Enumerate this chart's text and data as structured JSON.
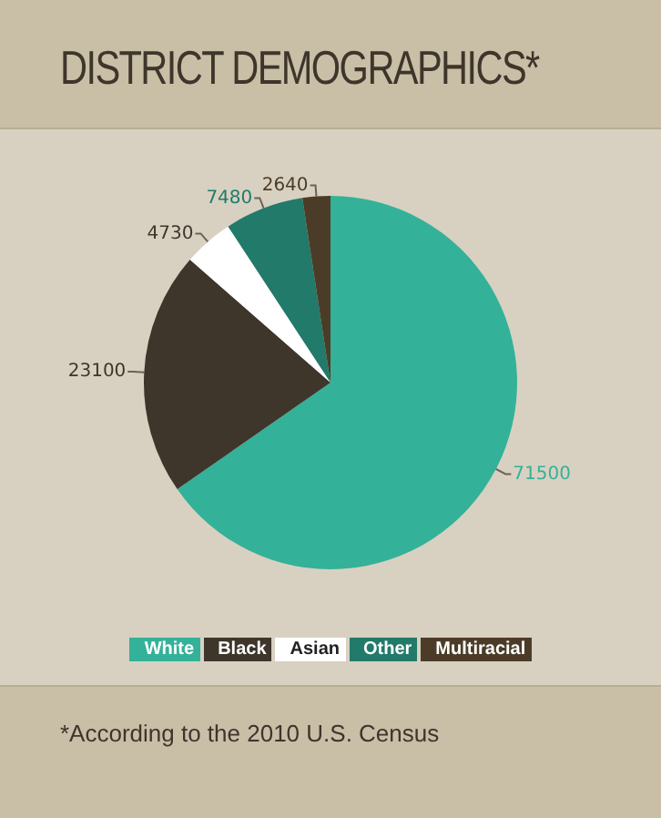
{
  "chart_data": {
    "type": "pie",
    "title": "DISTRICT DEMOGRAPHICS*",
    "categories": [
      "White",
      "Black",
      "Asian",
      "Other",
      "Multiracial"
    ],
    "values": [
      71500,
      23100,
      4730,
      7480,
      2640
    ],
    "colors": [
      "#34b199",
      "#3e352b",
      "#ffffff",
      "#217a6a",
      "#4b3c28"
    ],
    "data_labels": true,
    "legend": "bottom",
    "annotations": [
      "*According to the 2010 U.S. Census"
    ]
  }
}
